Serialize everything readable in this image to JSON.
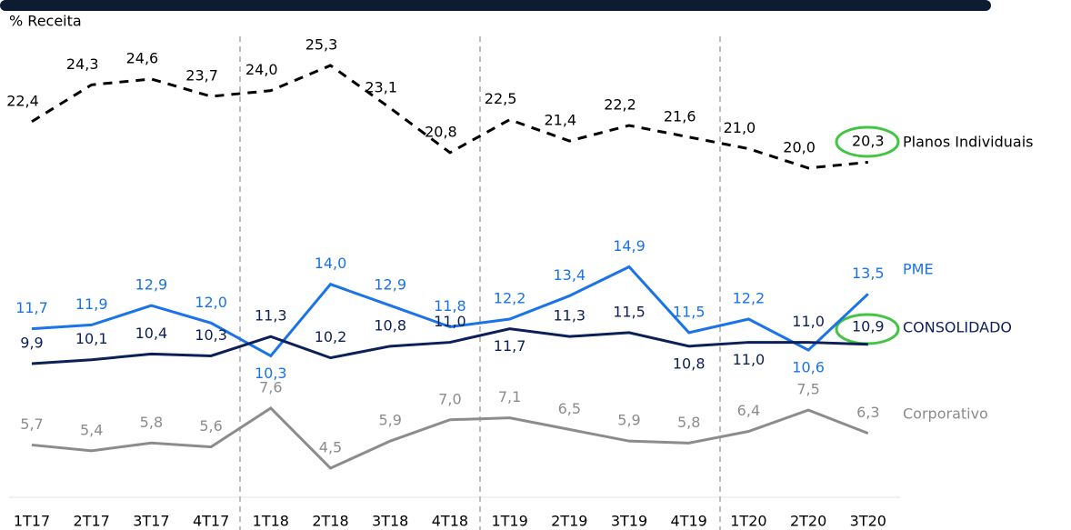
{
  "chart_data": {
    "type": "line",
    "y_label": "% Receita",
    "categories": [
      "1T17",
      "2T17",
      "3T17",
      "4T17",
      "1T18",
      "2T18",
      "3T18",
      "4T18",
      "1T19",
      "2T19",
      "3T19",
      "4T19",
      "1T20",
      "2T20",
      "3T20"
    ],
    "series": [
      {
        "name": "Planos Individuais",
        "color": "#000000",
        "dashed": true,
        "values": [
          22.4,
          24.3,
          24.6,
          23.7,
          24.0,
          25.3,
          23.1,
          20.8,
          22.5,
          21.4,
          22.2,
          21.6,
          21.0,
          20.0,
          20.3
        ],
        "value_labels": [
          "22,4",
          "24,3",
          "24,6",
          "23,7",
          "24,0",
          "25,3",
          "23,1",
          "20,8",
          "22,5",
          "21,4",
          "22,2",
          "21,6",
          "21,0",
          "20,0",
          "20,3"
        ]
      },
      {
        "name": "PME",
        "color": "#1a73e8",
        "dashed": false,
        "values": [
          11.7,
          11.9,
          12.9,
          12.0,
          10.3,
          14.0,
          12.9,
          11.8,
          12.2,
          13.4,
          14.9,
          11.5,
          12.2,
          10.6,
          13.5
        ],
        "value_labels": [
          "11,7",
          "11,9",
          "12,9",
          "12,0",
          "10,3",
          "14,0",
          "12,9",
          "11,8",
          "12,2",
          "13,4",
          "14,9",
          "11,5",
          "12,2",
          "10,6",
          "13,5"
        ]
      },
      {
        "name": "CONSOLIDADO",
        "color": "#0b2059",
        "dashed": false,
        "values": [
          9.9,
          10.1,
          10.4,
          10.3,
          11.3,
          10.2,
          10.8,
          11.0,
          11.7,
          11.3,
          11.5,
          10.8,
          11.0,
          11.0,
          10.9
        ],
        "value_labels": [
          "9,9",
          "10,1",
          "10,4",
          "10,3",
          "11,3",
          "10,2",
          "10,8",
          "11,0",
          "11,7",
          "11,3",
          "11,5",
          "10,8",
          "11,0",
          "11,0",
          "10,9"
        ]
      },
      {
        "name": "Corporativo",
        "color": "#8c8c8c",
        "dashed": false,
        "values": [
          5.7,
          5.4,
          5.8,
          5.6,
          7.6,
          4.5,
          5.9,
          7.0,
          7.1,
          6.5,
          5.9,
          5.8,
          6.4,
          7.5,
          6.3
        ],
        "value_labels": [
          "5,7",
          "5,4",
          "5,8",
          "5,6",
          "7,6",
          "4,5",
          "5,9",
          "7,0",
          "7,1",
          "6,5",
          "5,9",
          "5,8",
          "6,4",
          "7,5",
          "6,3"
        ]
      }
    ]
  }
}
